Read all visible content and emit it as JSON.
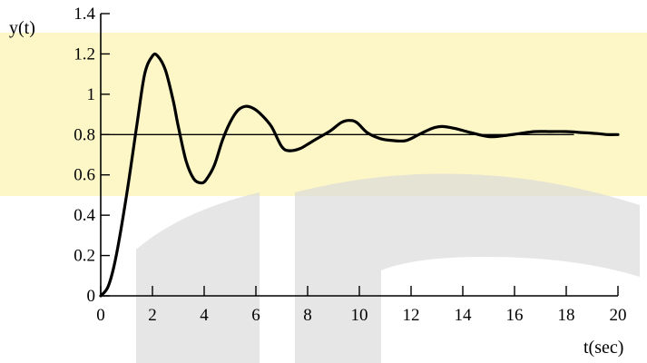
{
  "colors": {
    "band": "#fdf7c8",
    "watermark": "#d9d9d9",
    "curve": "#000000",
    "axis": "#000000"
  },
  "chart_data": {
    "type": "line",
    "title": "",
    "xlabel": "t(sec)",
    "ylabel": "y(t)",
    "xlim": [
      0,
      20
    ],
    "ylim": [
      0,
      1.4
    ],
    "x_ticks": [
      0,
      2,
      4,
      6,
      8,
      10,
      12,
      14,
      16,
      18,
      20
    ],
    "y_ticks": [
      0,
      0.2,
      0.4,
      0.6,
      0.8,
      1,
      1.2,
      1.4
    ],
    "x_tick_labels": [
      "0",
      "2",
      "4",
      "6",
      "8",
      "10",
      "12",
      "14",
      "16",
      "18",
      "20"
    ],
    "y_tick_labels": [
      "0",
      "0.2",
      "0.4",
      "0.6",
      "0.8",
      "1",
      "1.2",
      "1.4"
    ],
    "grid": false,
    "legend": "none",
    "reference_line": {
      "y": 0.8,
      "x_range": [
        0,
        18.3
      ]
    },
    "series": [
      {
        "x": [
          0,
          0.3,
          0.6,
          1.0,
          1.4,
          1.7,
          2.0,
          2.2,
          2.5,
          2.8,
          3.0,
          3.3,
          3.6,
          3.9,
          4.1,
          4.4,
          4.7,
          5.0,
          5.3,
          5.6,
          5.9,
          6.2,
          6.6,
          7.0,
          7.3,
          7.7,
          8.1,
          8.5,
          8.9,
          9.3,
          9.6,
          9.9,
          10.3,
          10.8,
          11.3,
          11.8,
          12.3,
          12.8,
          13.2,
          13.7,
          14.3,
          15.0,
          15.6,
          16.2,
          16.8,
          17.4,
          18.0,
          18.6,
          19.2,
          19.6,
          20.0
        ],
        "y": [
          0,
          0.05,
          0.2,
          0.5,
          0.85,
          1.1,
          1.19,
          1.19,
          1.12,
          0.97,
          0.84,
          0.67,
          0.58,
          0.56,
          0.58,
          0.65,
          0.77,
          0.86,
          0.92,
          0.94,
          0.93,
          0.9,
          0.84,
          0.74,
          0.72,
          0.73,
          0.76,
          0.79,
          0.82,
          0.86,
          0.87,
          0.86,
          0.81,
          0.78,
          0.77,
          0.77,
          0.8,
          0.83,
          0.84,
          0.83,
          0.81,
          0.79,
          0.795,
          0.805,
          0.815,
          0.815,
          0.815,
          0.81,
          0.805,
          0.8,
          0.8
        ]
      }
    ]
  }
}
